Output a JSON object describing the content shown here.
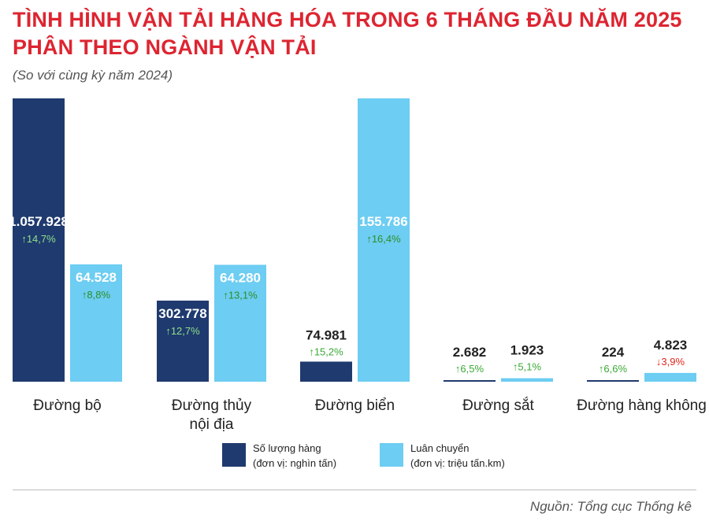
{
  "header": {
    "title_line1": "TÌNH HÌNH VẬN TẢI HÀNG HÓA TRONG 6 THÁNG ĐẦU NĂM 2025",
    "title_line2": "PHÂN THEO NGÀNH VẬN TẢI",
    "subtitle": "(So với cùng kỳ năm 2024)"
  },
  "source": "Nguồn: Tổng cục Thống kê",
  "colors": {
    "volume": "#1f3a6e",
    "turnover": "#6dcdf2",
    "up": "#3aa935",
    "down": "#e2261c"
  },
  "chart_data": {
    "type": "bar",
    "categories": [
      [
        "Đường bộ"
      ],
      [
        "Đường thủy",
        "nội địa"
      ],
      [
        "Đường biển"
      ],
      [
        "Đường sắt"
      ],
      [
        "Đường hàng không"
      ]
    ],
    "series": [
      {
        "name": "Số lượng hàng",
        "unit": "(đơn vị: nghìn tấn)",
        "values": [
          1057928,
          302778,
          74981,
          2682,
          224
        ],
        "labels": [
          "1.057.928",
          "302.778",
          "74.981",
          "2.682",
          "224"
        ],
        "changes": [
          {
            "dir": "up",
            "text": "14,7%"
          },
          {
            "dir": "up",
            "text": "12,7%"
          },
          {
            "dir": "up",
            "text": "15,2%"
          },
          {
            "dir": "up",
            "text": "6,5%"
          },
          {
            "dir": "up",
            "text": "6,6%"
          }
        ]
      },
      {
        "name": "Luân chuyển",
        "unit": "(đơn vị: triệu tấn.km)",
        "values": [
          64528,
          64280,
          155786,
          1923,
          4823
        ],
        "labels": [
          "64.528",
          "64.280",
          "155.786",
          "1.923",
          "4.823"
        ],
        "changes": [
          {
            "dir": "up",
            "text": "8,8%"
          },
          {
            "dir": "up",
            "text": "13,1%"
          },
          {
            "dir": "up",
            "text": "16,4%"
          },
          {
            "dir": "up",
            "text": "5,1%"
          },
          {
            "dir": "down",
            "text": "3,9%"
          }
        ]
      }
    ]
  }
}
